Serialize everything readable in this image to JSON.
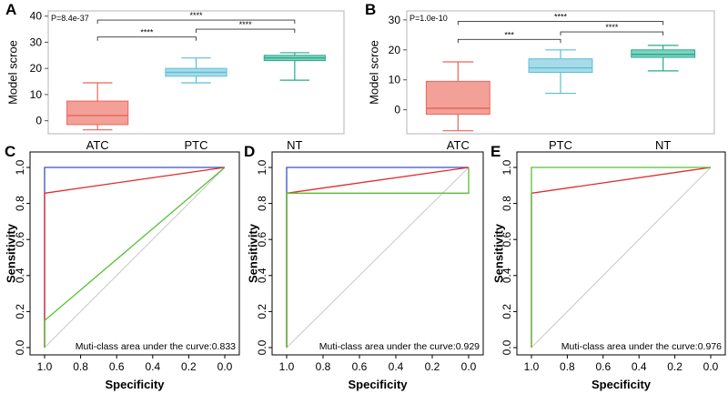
{
  "chart_data": [
    {
      "panel": "A",
      "type": "box",
      "ylabel": "Model scroe",
      "categories": [
        "ATC",
        "PTC",
        "NT"
      ],
      "ylim": [
        -5,
        42
      ],
      "yticks": [
        0,
        10,
        20,
        30,
        40
      ],
      "pvalue_text": "P=8.4e-37",
      "boxes": [
        {
          "name": "ATC",
          "whisker_low": -3.5,
          "q1": -1.5,
          "median": 2.0,
          "q3": 7.5,
          "whisker_high": 14.5,
          "fill": "#f2a098",
          "stroke": "#e8665c"
        },
        {
          "name": "PTC",
          "whisker_low": 14.5,
          "q1": 17.0,
          "median": 18.5,
          "q3": 20.0,
          "whisker_high": 24.0,
          "fill": "#a8dbe8",
          "stroke": "#5bbfd6"
        },
        {
          "name": "NT",
          "whisker_low": 15.5,
          "q1": 23.0,
          "median": 24.0,
          "q3": 25.0,
          "whisker_high": 26.0,
          "fill": "#7fd3c0",
          "stroke": "#2aa98a"
        }
      ],
      "comparisons": [
        {
          "from": "ATC",
          "to": "PTC",
          "label": "****",
          "y": 32
        },
        {
          "from": "PTC",
          "to": "NT",
          "label": "****",
          "y": 35
        },
        {
          "from": "ATC",
          "to": "NT",
          "label": "****",
          "y": 38.5
        }
      ]
    },
    {
      "panel": "B",
      "type": "box",
      "ylabel": "Model scroe",
      "categories": [
        "ATC",
        "PTC",
        "NT"
      ],
      "ylim": [
        -8,
        33
      ],
      "yticks": [
        0,
        10,
        20,
        30
      ],
      "pvalue_text": "P=1.0e-10",
      "boxes": [
        {
          "name": "ATC",
          "whisker_low": -7.0,
          "q1": -1.5,
          "median": 0.5,
          "q3": 9.5,
          "whisker_high": 16.0,
          "fill": "#f2a098",
          "stroke": "#e8665c"
        },
        {
          "name": "PTC",
          "whisker_low": 5.5,
          "q1": 12.5,
          "median": 14.0,
          "q3": 17.0,
          "whisker_high": 20.0,
          "fill": "#a8dbe8",
          "stroke": "#5bbfd6"
        },
        {
          "name": "NT",
          "whisker_low": 13.0,
          "q1": 17.5,
          "median": 18.5,
          "q3": 20.0,
          "whisker_high": 21.5,
          "fill": "#7fd3c0",
          "stroke": "#2aa98a"
        }
      ],
      "comparisons": [
        {
          "from": "ATC",
          "to": "PTC",
          "label": "***",
          "y": 23.5
        },
        {
          "from": "PTC",
          "to": "NT",
          "label": "****",
          "y": 26
        },
        {
          "from": "ATC",
          "to": "NT",
          "label": "****",
          "y": 29.5
        }
      ]
    },
    {
      "panel": "C",
      "type": "line",
      "subtype": "roc",
      "xlabel": "Specificity",
      "ylabel": "Sensitivity",
      "xlim": [
        1.0,
        0.0
      ],
      "ylim": [
        0.0,
        1.0
      ],
      "xticks": [
        "1.0",
        "0.8",
        "0.6",
        "0.4",
        "0.2",
        "0.0"
      ],
      "yticks": [
        "0.0",
        "0.2",
        "0.4",
        "0.6",
        "0.8",
        "1.0"
      ],
      "annotation": "Muti-class area under the curve:0.833",
      "series": [
        {
          "name": "blue",
          "color": "#3b4fc4",
          "points": [
            [
              1,
              0
            ],
            [
              1,
              1
            ],
            [
              0,
              1
            ]
          ]
        },
        {
          "name": "red",
          "color": "#e02b2b",
          "points": [
            [
              1,
              0
            ],
            [
              1,
              0.857
            ],
            [
              0,
              1
            ]
          ]
        },
        {
          "name": "green",
          "color": "#55c232",
          "points": [
            [
              1,
              0
            ],
            [
              1,
              0.15
            ],
            [
              0,
              1
            ]
          ]
        }
      ]
    },
    {
      "panel": "D",
      "type": "line",
      "subtype": "roc",
      "xlabel": "Specificity",
      "ylabel": "Sensitivity",
      "xlim": [
        1.0,
        0.0
      ],
      "ylim": [
        0.0,
        1.0
      ],
      "xticks": [
        "1.0",
        "0.8",
        "0.6",
        "0.4",
        "0.2",
        "0.0"
      ],
      "yticks": [
        "0.0",
        "0.2",
        "0.4",
        "0.6",
        "0.8",
        "1.0"
      ],
      "annotation": "Muti-class area under the curve:0.929",
      "series": [
        {
          "name": "blue",
          "color": "#3b4fc4",
          "points": [
            [
              1,
              0
            ],
            [
              1,
              1
            ],
            [
              0,
              1
            ]
          ]
        },
        {
          "name": "red",
          "color": "#e02b2b",
          "points": [
            [
              1,
              0
            ],
            [
              1,
              0.857
            ],
            [
              0,
              1
            ]
          ]
        },
        {
          "name": "green",
          "color": "#55c232",
          "points": [
            [
              1,
              0
            ],
            [
              1,
              0.857
            ],
            [
              0,
              0.857
            ],
            [
              0,
              1
            ]
          ]
        }
      ]
    },
    {
      "panel": "E",
      "type": "line",
      "subtype": "roc",
      "xlabel": "Specificity",
      "ylabel": "Sensitivity",
      "xlim": [
        1.0,
        0.0
      ],
      "ylim": [
        0.0,
        1.0
      ],
      "xticks": [
        "1.0",
        "0.8",
        "0.6",
        "0.4",
        "0.2",
        "0.0"
      ],
      "yticks": [
        "0.0",
        "0.2",
        "0.4",
        "0.6",
        "0.8",
        "1.0"
      ],
      "annotation": "Muti-class area under the curve:0.976",
      "series": [
        {
          "name": "red",
          "color": "#e02b2b",
          "points": [
            [
              1,
              0
            ],
            [
              1,
              0.857
            ],
            [
              0,
              1
            ]
          ]
        },
        {
          "name": "green",
          "color": "#55c232",
          "points": [
            [
              1,
              0
            ],
            [
              1,
              1
            ],
            [
              0,
              1
            ]
          ]
        }
      ]
    }
  ]
}
